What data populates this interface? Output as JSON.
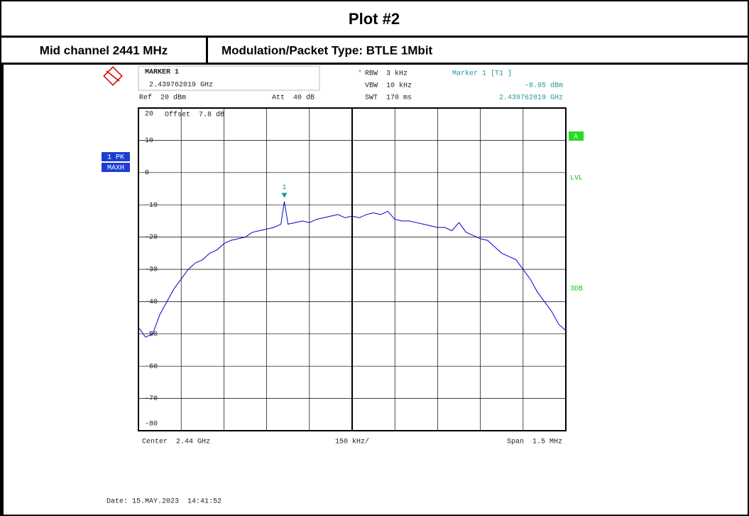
{
  "header": {
    "title": "Plot #2",
    "channel": "Mid channel 2441 MHz",
    "modulation": "Modulation/Packet Type: BTLE 1Mbit"
  },
  "chart_data": {
    "type": "line",
    "info": {
      "marker_title": "MARKER 1",
      "marker_freq": "2.439762019 GHz",
      "ref": "Ref  20 dBm",
      "att": "Att  40 dB",
      "rbw_star": "*",
      "rbw": "RBW  3 kHz",
      "vbw": "VBW  10 kHz",
      "swt": "SWT  170 ms",
      "marker_head": "Marker 1 [T1 ]",
      "marker_freq2": "2.439762019 GHz",
      "offset": "Offset  7.8 dB",
      "trace": "1 PK",
      "mode": "MAXH",
      "a": "A",
      "lvl": "LVL",
      "db3": "3DB",
      "center": "Center  2.44 GHz",
      "div": "150 kHz/",
      "span": "Span  1.5 MHz",
      "date": "Date: 15.MAY.2023  14:41:52"
    },
    "x": [
      2439.25,
      2439.275,
      2439.3,
      2439.325,
      2439.35,
      2439.375,
      2439.4,
      2439.425,
      2439.45,
      2439.475,
      2439.5,
      2439.525,
      2439.55,
      2439.575,
      2439.6,
      2439.625,
      2439.65,
      2439.675,
      2439.7,
      2439.725,
      2439.75,
      2439.762019,
      2439.775,
      2439.8,
      2439.825,
      2439.85,
      2439.875,
      2439.9,
      2439.925,
      2439.95,
      2439.975,
      2440.0,
      2440.025,
      2440.05,
      2440.075,
      2440.1,
      2440.125,
      2440.15,
      2440.175,
      2440.2,
      2440.225,
      2440.25,
      2440.275,
      2440.3,
      2440.325,
      2440.35,
      2440.375,
      2440.4,
      2440.425,
      2440.45,
      2440.475,
      2440.5,
      2440.525,
      2440.55,
      2440.575,
      2440.6,
      2440.625,
      2440.65,
      2440.675,
      2440.7,
      2440.725,
      2440.75
    ],
    "series": [
      {
        "color": "#0000cc",
        "values": [
          -48,
          -51,
          -50,
          -44,
          -40,
          -36,
          -33,
          -30,
          -28,
          -27,
          -25,
          -24,
          -22,
          -21,
          -20.5,
          -20,
          -18.5,
          -18,
          -17.5,
          -17,
          -16,
          -8.95,
          -16,
          -15.5,
          -15,
          -15.5,
          -14.5,
          -14,
          -13.5,
          -13,
          -14,
          -13.5,
          -14,
          -13,
          -12.5,
          -13,
          -12,
          -14.5,
          -15,
          -15,
          -15.5,
          -16,
          -16.5,
          -17,
          -17,
          -18,
          -15.5,
          -18.5,
          -19.5,
          -20.5,
          -21,
          -23,
          -25,
          -26,
          -27,
          -30,
          -33,
          -37,
          -40,
          -43,
          -47,
          -49
        ]
      }
    ],
    "marker": {
      "label": "1",
      "x": 2439.762019,
      "value": -8.95,
      "value_label": "-8.95 dBm",
      "color": "#1a9a9a"
    },
    "xlim": [
      2439.25,
      2440.75
    ],
    "xticks": [
      2439.25,
      2439.4,
      2439.55,
      2439.7,
      2439.85,
      2440.0,
      2440.15,
      2440.3,
      2440.45,
      2440.6,
      2440.75
    ],
    "ylim": [
      -80,
      20
    ],
    "yticks": [
      20,
      10,
      0,
      -10,
      -20,
      -30,
      -40,
      -50,
      -60,
      -70,
      -80
    ],
    "grid": true
  }
}
